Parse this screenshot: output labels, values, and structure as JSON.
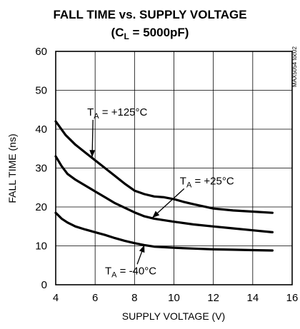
{
  "chart_data": {
    "type": "line",
    "title": "FALL TIME vs. SUPPLY VOLTAGE",
    "subtitle_parts": {
      "open": "(C",
      "sub": "L",
      "close": " = 5000pF)"
    },
    "xlabel": "SUPPLY VOLTAGE (V)",
    "ylabel": "FALL TIME (ns)",
    "xlim": [
      4,
      16
    ],
    "ylim": [
      0,
      60
    ],
    "xticks": [
      "4",
      "6",
      "8",
      "10",
      "12",
      "14",
      "16"
    ],
    "yticks": [
      "0",
      "10",
      "20",
      "30",
      "40",
      "50",
      "60"
    ],
    "grid": true,
    "side_id": "MAX5054 toc02",
    "series": [
      {
        "name": "TA = +125°C",
        "label_main": "T",
        "label_sub": "A",
        "label_rest": " = +125°C",
        "x": [
          4,
          4.5,
          5,
          5.5,
          6,
          6.5,
          7,
          7.5,
          8,
          8.5,
          9,
          9.5,
          10,
          10.5,
          11,
          12,
          13,
          14,
          15
        ],
        "y": [
          42,
          38.5,
          36,
          34,
          32,
          30,
          28,
          26,
          24.2,
          23.3,
          22.7,
          22.5,
          22,
          21.3,
          20.7,
          19.6,
          19.1,
          18.8,
          18.5
        ]
      },
      {
        "name": "TA = +25°C",
        "label_main": "T",
        "label_sub": "A",
        "label_rest": " = +25°C",
        "x": [
          4,
          4.3,
          4.6,
          5,
          5.5,
          6,
          6.5,
          7,
          7.5,
          8,
          8.5,
          9,
          10,
          11,
          12,
          13,
          14,
          15
        ],
        "y": [
          33,
          30.5,
          28.5,
          27,
          25.5,
          24,
          22.5,
          21,
          19.8,
          18.6,
          17.6,
          17,
          16.2,
          15.5,
          15,
          14.5,
          14,
          13.5
        ]
      },
      {
        "name": "TA = -40°C",
        "label_main": "T",
        "label_sub": "A",
        "label_rest": " = -40°C",
        "x": [
          4,
          4.3,
          4.6,
          5,
          5.5,
          6,
          6.5,
          7,
          7.5,
          8,
          8.5,
          9,
          10,
          11,
          12,
          13,
          14,
          15
        ],
        "y": [
          18.5,
          17,
          16,
          15,
          14.2,
          13.5,
          12.8,
          12,
          11.3,
          10.7,
          10.2,
          9.8,
          9.5,
          9.3,
          9.1,
          9,
          8.9,
          8.8
        ]
      }
    ],
    "annotations": [
      {
        "series": 0,
        "text_x": 5.6,
        "text_y": 43.5,
        "arrow_to_x": 5.85,
        "arrow_to_y": 32.8
      },
      {
        "series": 1,
        "text_x": 10.3,
        "text_y": 25.8,
        "arrow_to_x": 8.9,
        "arrow_to_y": 17.2
      },
      {
        "series": 2,
        "text_x": 6.5,
        "text_y": 2.7,
        "arrow_to_x": 8.5,
        "arrow_to_y": 10.2
      }
    ]
  }
}
